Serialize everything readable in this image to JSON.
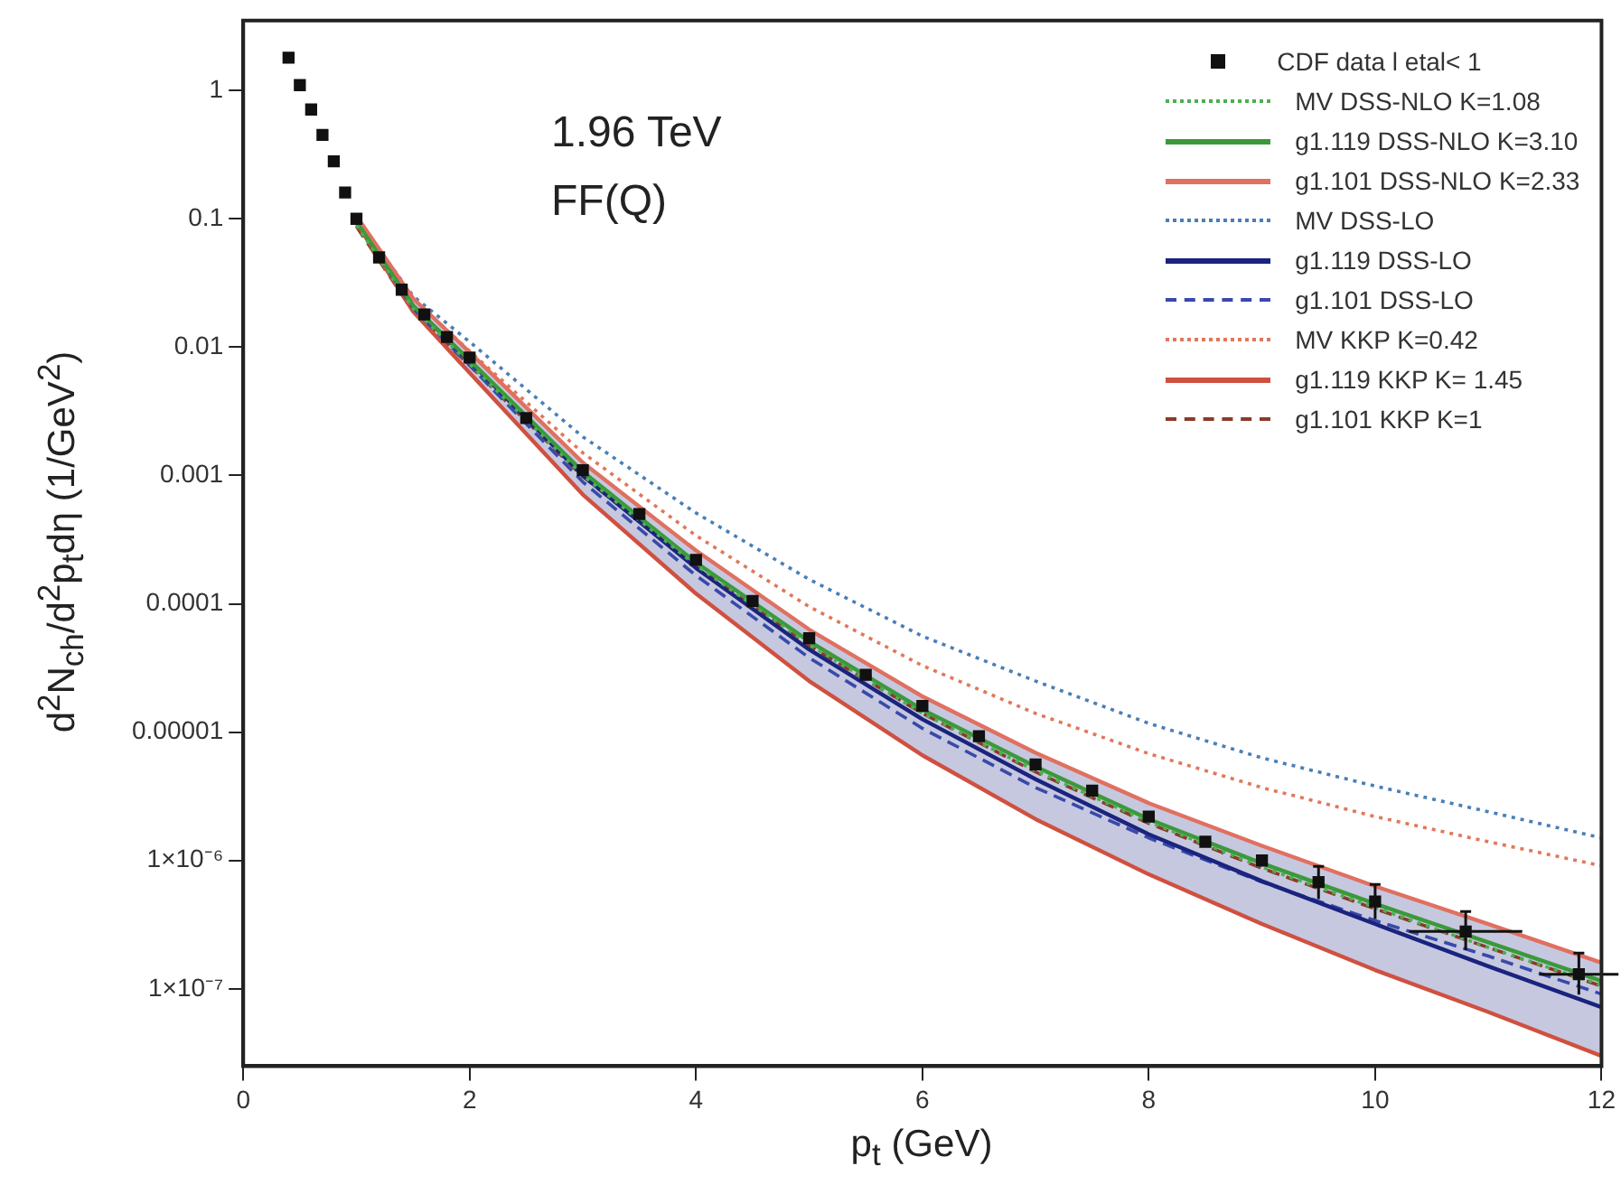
{
  "chart_data": {
    "type": "line",
    "xlabel": "p$_{t}$ (GeV)",
    "ylabel": "d$^{2}$N$_{ch}$/d$^{2}$p$_{t}$dη (1/GeV$^{2}$)",
    "annotations": [
      "1.96 TeV",
      "FF(Q)"
    ],
    "log": "y",
    "xlim": [
      0,
      12
    ],
    "xticks": [
      0,
      2,
      4,
      6,
      8,
      10,
      12
    ],
    "ylim": [
      2.5e-08,
      3.5
    ],
    "yticks": [
      {
        "value": 1,
        "label": "1"
      },
      {
        "value": 0.1,
        "label": "0.1"
      },
      {
        "value": 0.01,
        "label": "0.01"
      },
      {
        "value": 0.001,
        "label": "0.001"
      },
      {
        "value": 0.0001,
        "label": "0.0001"
      },
      {
        "value": 1e-05,
        "label": "0.00001"
      },
      {
        "value": 1e-06,
        "label": "1×10⁻⁶"
      },
      {
        "value": 1e-07,
        "label": "1×10⁻⁷"
      }
    ],
    "grid": false,
    "legend": "top right",
    "x": [
      1,
      1.5,
      2,
      3,
      4,
      5,
      6,
      7,
      8,
      9,
      10,
      11,
      12
    ],
    "series": [
      {
        "name": "CDF data l etal< 1",
        "type": "scatter",
        "marker": "square",
        "color": "#111111",
        "x": [
          0.4,
          0.5,
          0.6,
          0.7,
          0.8,
          0.9,
          1,
          1.2,
          1.4,
          1.6,
          1.8,
          2,
          2.5,
          3,
          3.5,
          4,
          4.5,
          5,
          5.5,
          6,
          6.5,
          7,
          7.5,
          8,
          8.5,
          9,
          9.5,
          10,
          10.8,
          11.8
        ],
        "values": [
          1.8,
          1.1,
          0.71,
          0.45,
          0.28,
          0.16,
          0.1,
          0.05,
          0.028,
          0.018,
          0.012,
          0.0083,
          0.0028,
          0.0011,
          0.0005,
          0.00022,
          0.000105,
          5.4e-05,
          2.8e-05,
          1.6e-05,
          9.3e-06,
          5.6e-06,
          3.5e-06,
          2.2e-06,
          1.4e-06,
          1e-06,
          6.8e-07,
          4.8e-07,
          2.8e-07,
          1.3e-07
        ],
        "errors": [
          null,
          null,
          null,
          null,
          null,
          null,
          null,
          null,
          null,
          null,
          null,
          null,
          null,
          null,
          null,
          null,
          null,
          null,
          null,
          null,
          null,
          null,
          null,
          null,
          null,
          null,
          [
            5e-07,
            9e-07
          ],
          [
            3.5e-07,
            6.5e-07
          ],
          [
            2e-07,
            4e-07
          ],
          [
            9e-08,
            1.9e-07
          ]
        ],
        "xerrors": [
          null,
          null,
          null,
          null,
          null,
          null,
          null,
          null,
          null,
          null,
          null,
          null,
          null,
          null,
          null,
          null,
          null,
          null,
          null,
          null,
          null,
          null,
          null,
          null,
          null,
          null,
          null,
          null,
          0.5,
          0.35
        ]
      },
      {
        "name": "MV DSS-NLO K=1.08",
        "color": "#4caf50",
        "line_style": "dotted",
        "values": [
          0.089,
          0.02,
          0.0074,
          0.001,
          0.0002,
          4.8e-05,
          1.4e-05,
          5e-06,
          2e-06,
          8.9e-07,
          4.3e-07,
          2.1e-07,
          1.07e-07
        ]
      },
      {
        "name": "g1.119 DSS-NLO K=3.10",
        "color": "#3a9a3a",
        "line_style": "solid",
        "values": [
          0.095,
          0.021,
          0.0079,
          0.00107,
          0.00021,
          5.1e-05,
          1.5e-05,
          5.4e-06,
          2.1e-06,
          9.5e-07,
          4.6e-07,
          2.3e-07,
          1.15e-07
        ]
      },
      {
        "name": "g1.101 DSS-NLO K=2.33",
        "color": "#e07060",
        "line_style": "solid",
        "values": [
          0.105,
          0.024,
          0.0091,
          0.00126,
          0.00026,
          6.3e-05,
          1.9e-05,
          6.9e-06,
          2.8e-06,
          1.3e-06,
          6.3e-07,
          3.2e-07,
          1.6e-07
        ]
      },
      {
        "name": "MV DSS-LO",
        "color": "#4a7fb5",
        "line_style": "dotted",
        "values": [
          0.1,
          0.025,
          0.011,
          0.002,
          0.00051,
          0.000155,
          5.6e-05,
          2.5e-05,
          1.17e-05,
          6.3e-06,
          3.8e-06,
          2.4e-06,
          1.5e-06
        ]
      },
      {
        "name": "g1.119 DSS-LO",
        "color": "#1a237e",
        "line_style": "solid",
        "values": [
          0.098,
          0.021,
          0.0078,
          0.001,
          0.00019,
          4.4e-05,
          1.26e-05,
          4.3e-06,
          1.6e-06,
          6.9e-07,
          3.2e-07,
          1.5e-07,
          7.2e-08
        ],
        "lower": [
          0.093,
          0.019,
          0.0063,
          0.00071,
          0.00012,
          2.5e-05,
          6.6e-06,
          2.1e-06,
          7.8e-07,
          3.2e-07,
          1.4e-07,
          6.6e-08,
          3e-08
        ],
        "upper": [
          0.105,
          0.024,
          0.0091,
          0.00126,
          0.00026,
          6.3e-05,
          1.9e-05,
          6.9e-06,
          2.8e-06,
          1.3e-06,
          6.3e-07,
          3.2e-07,
          1.6e-07
        ]
      },
      {
        "name": "g1.101 DSS-LO",
        "color": "#3949ab",
        "line_style": "dashed",
        "values": [
          0.095,
          0.02,
          0.0072,
          0.00089,
          0.000166,
          3.8e-05,
          1.07e-05,
          3.7e-06,
          1.5e-06,
          6.8e-07,
          3.4e-07,
          1.8e-07,
          9.1e-08
        ]
      },
      {
        "name": "MV KKP K=0.42",
        "color": "#e0785a",
        "line_style": "dotted",
        "values": [
          0.1,
          0.024,
          0.0093,
          0.0015,
          0.00034,
          9.5e-05,
          3.3e-05,
          1.4e-05,
          6.8e-06,
          3.7e-06,
          2.2e-06,
          1.4e-06,
          9.1e-07
        ]
      },
      {
        "name": "g1.119 KKP K= 1.45",
        "color": "#d05040",
        "line_style": "solid",
        "values": [
          0.093,
          0.019,
          0.0063,
          0.00071,
          0.00012,
          2.5e-05,
          6.6e-06,
          2.1e-06,
          7.8e-07,
          3.2e-07,
          1.4e-07,
          6.6e-08,
          3e-08
        ]
      },
      {
        "name": "g1.101 KKP K=1",
        "color": "#8b3a2a",
        "line_style": "dashed",
        "values": [
          0.087,
          0.019,
          0.0072,
          0.00098,
          0.000195,
          4.7e-05,
          1.4e-05,
          4.9e-06,
          1.95e-06,
          8.7e-07,
          4.2e-07,
          2.1e-07,
          1.05e-07
        ]
      }
    ]
  }
}
